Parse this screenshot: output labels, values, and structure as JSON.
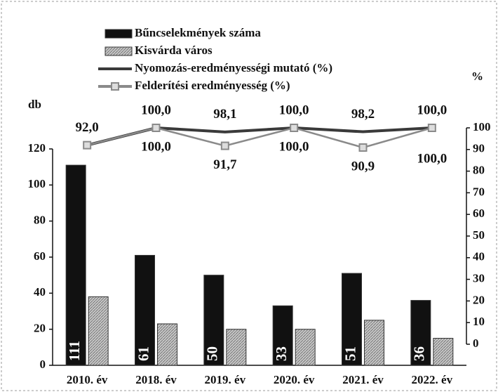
{
  "chart_data": {
    "type": "bar_line",
    "categories": [
      "2010. év",
      "2018. év",
      "2019. év",
      "2020. év",
      "2021. év",
      "2022. év"
    ],
    "y_label": "db",
    "y2_label": "%",
    "ylim": [
      0,
      120
    ],
    "yticks": [
      0,
      20,
      40,
      60,
      80,
      100,
      120
    ],
    "y2lim": [
      0,
      100
    ],
    "y2ticks": [
      0,
      10,
      20,
      30,
      40,
      50,
      60,
      70,
      80,
      90,
      100
    ],
    "series": [
      {
        "name": "Bűncselekmények száma",
        "kind": "bar",
        "color": "#111111",
        "values": [
          111,
          61,
          50,
          33,
          51,
          36
        ]
      },
      {
        "name": "Kisvárda város",
        "kind": "bar",
        "color": "#b5b5b5",
        "values": [
          38,
          23,
          20,
          20,
          25,
          15
        ]
      },
      {
        "name": "Nyomozás-eredményességi mutató (%)",
        "kind": "line",
        "axis": "y2",
        "color": "#3a3a3a",
        "values": [
          92.0,
          100.0,
          98.1,
          100.0,
          98.2,
          100.0
        ],
        "value_labels": [
          "92,0",
          "100,0",
          "98,1",
          "100,0",
          "98,2",
          "100,0"
        ]
      },
      {
        "name": "Felderítési eredményesség (%)",
        "kind": "line",
        "axis": "y2",
        "color": "#8a8a8a",
        "marker": "square",
        "values": [
          92.0,
          100.0,
          91.7,
          100.0,
          90.9,
          100.0
        ],
        "value_labels": [
          null,
          "100,0",
          "91,7",
          "100,0",
          "90,9",
          "100,0"
        ]
      }
    ]
  }
}
